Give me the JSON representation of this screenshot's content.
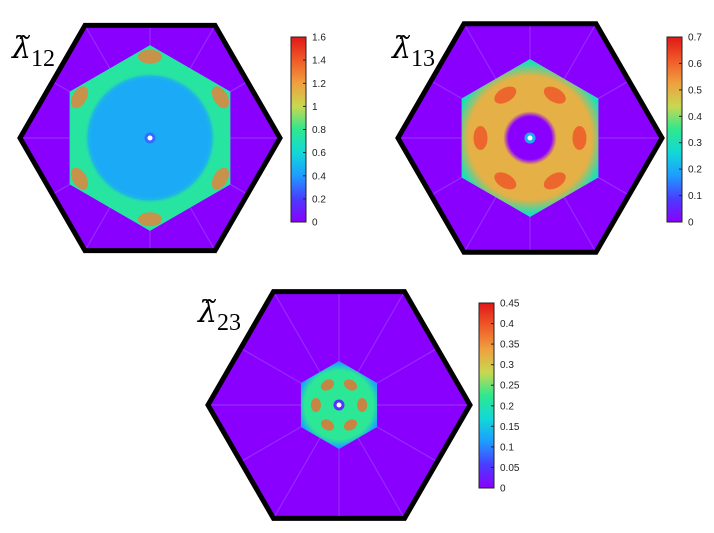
{
  "chart_data": [
    {
      "type": "heatmap",
      "label_symbol": "λ̃",
      "label_subscript": "12",
      "colorbar": {
        "min": 0,
        "max": 1.6,
        "ticks": [
          "0",
          "0.2",
          "0.4",
          "0.6",
          "0.8",
          "1",
          "1.2",
          "1.4",
          "1.6"
        ]
      },
      "pattern": {
        "background_value": 0,
        "ring_inner_radius_fraction": 0.5,
        "ring_outer_radius_fraction": 0.68,
        "ring_value": 0.75,
        "interior_value": 0.45,
        "hotspot_value": 1.3,
        "hotspot_count": 6,
        "center_dot_value": 0.3
      }
    },
    {
      "type": "heatmap",
      "label_symbol": "λ̃",
      "label_subscript": "13",
      "colorbar": {
        "min": 0,
        "max": 0.7,
        "ticks": [
          "0",
          "0.1",
          "0.2",
          "0.3",
          "0.4",
          "0.5",
          "0.6",
          "0.7"
        ]
      },
      "pattern": {
        "background_value": 0,
        "ring_inner_radius_fraction": 0.18,
        "ring_outer_radius_fraction": 0.57,
        "ring_value": 0.5,
        "edge_value": 0.3,
        "hotspot_value": 0.62,
        "hotspot_count": 6,
        "center_dot_value": 0.2
      }
    },
    {
      "type": "heatmap",
      "label_symbol": "λ̃",
      "label_subscript": "23",
      "colorbar": {
        "min": 0,
        "max": 0.45,
        "ticks": [
          "0",
          "0.05",
          "0.1",
          "0.15",
          "0.2",
          "0.25",
          "0.3",
          "0.35",
          "0.4",
          "0.45"
        ]
      },
      "pattern": {
        "background_value": 0,
        "ring_inner_radius_fraction": 0.0,
        "ring_outer_radius_fraction": 0.32,
        "ring_value": 0.22,
        "edge_value": 0.12,
        "hotspot_value": 0.38,
        "hotspot_count": 6,
        "center_dot_value": 0.05
      }
    }
  ],
  "colormap": {
    "name": "rainbow",
    "stops": [
      "#8a00ff",
      "#4a3cff",
      "#1e9cff",
      "#12d8d8",
      "#2ee88e",
      "#c8d850",
      "#f0a040",
      "#f05a28",
      "#e01818"
    ]
  }
}
